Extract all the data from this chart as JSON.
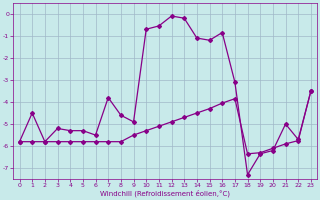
{
  "xlabel": "Windchill (Refroidissement éolien,°C)",
  "xlim": [
    -0.5,
    23.5
  ],
  "ylim": [
    -7.5,
    0.5
  ],
  "yticks": [
    0,
    -1,
    -2,
    -3,
    -4,
    -5,
    -6,
    -7
  ],
  "xticks": [
    0,
    1,
    2,
    3,
    4,
    5,
    6,
    7,
    8,
    9,
    10,
    11,
    12,
    13,
    14,
    15,
    16,
    17,
    18,
    19,
    20,
    21,
    22,
    23
  ],
  "bg_color": "#c8eaea",
  "line_color": "#880088",
  "grid_color": "#a0b8c8",
  "line1_y": [
    -5.8,
    -4.5,
    -5.8,
    -5.2,
    -5.3,
    -5.3,
    -5.5,
    -3.8,
    -4.6,
    -4.9,
    -0.7,
    -0.55,
    -0.1,
    -0.2,
    -1.1,
    -1.2,
    -0.85,
    -3.1,
    -7.3,
    -6.35,
    -6.2,
    -5.0,
    -5.7,
    -3.5
  ],
  "line2_y": [
    -5.8,
    -5.8,
    -5.8,
    -5.8,
    -5.8,
    -5.8,
    -5.8,
    -5.8,
    -5.8,
    -5.5,
    -5.3,
    -5.1,
    -4.9,
    -4.7,
    -4.5,
    -4.3,
    -4.05,
    -3.85,
    -6.35,
    -6.3,
    -6.1,
    -5.9,
    -5.75,
    -3.5
  ],
  "marker": "D",
  "marker_size": 2,
  "line_width": 0.9
}
